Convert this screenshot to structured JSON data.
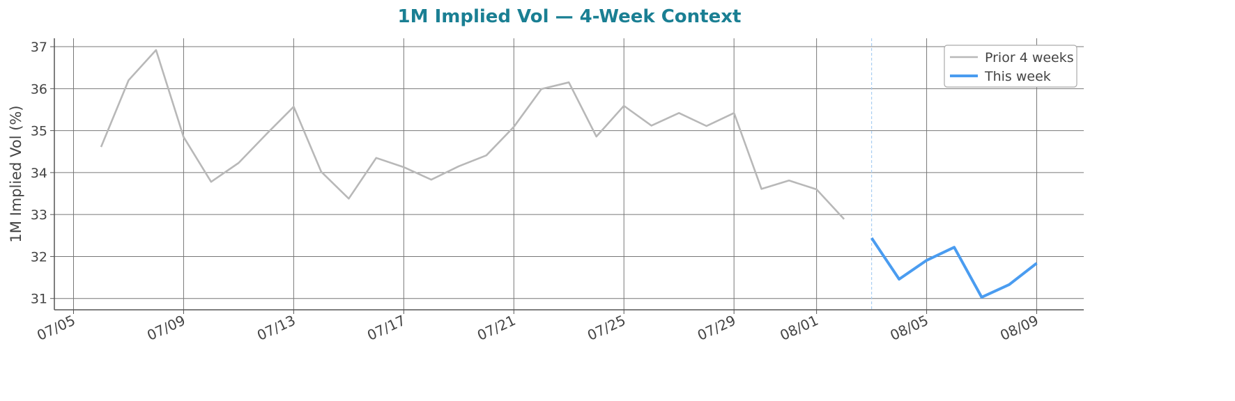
{
  "chart_data": {
    "type": "line",
    "title": "1M Implied Vol — 4-Week Context",
    "y_label": "1M Implied Vol (%)",
    "series": [
      {
        "name": "Prior 4 weeks",
        "color": "#b8b8b8",
        "x": [
          "07/06",
          "07/07",
          "07/08",
          "07/09",
          "07/10",
          "07/11",
          "07/12",
          "07/13",
          "07/14",
          "07/15",
          "07/16",
          "07/17",
          "07/18",
          "07/19",
          "07/20",
          "07/21",
          "07/22",
          "07/23",
          "07/24",
          "07/25",
          "07/26",
          "07/27",
          "07/28",
          "07/29",
          "07/30",
          "07/31",
          "08/01",
          "08/02"
        ],
        "values": [
          34.61,
          36.2,
          36.92,
          34.85,
          33.78,
          34.23,
          34.91,
          35.57,
          34.02,
          33.38,
          34.35,
          34.13,
          33.83,
          34.15,
          34.41,
          35.09,
          35.99,
          36.15,
          34.86,
          35.59,
          35.12,
          35.42,
          35.11,
          35.42,
          33.61,
          33.81,
          33.6,
          32.89
        ]
      },
      {
        "name": "This week",
        "color": "#4a9cf0",
        "x": [
          "08/03",
          "08/04",
          "08/05",
          "08/06",
          "08/07",
          "08/08",
          "08/09"
        ],
        "values": [
          32.44,
          31.46,
          31.91,
          32.22,
          31.03,
          31.33,
          31.84
        ]
      }
    ],
    "xlim": [
      "07/04",
      "08/10"
    ],
    "xticks": [
      "07/05",
      "07/09",
      "07/13",
      "07/17",
      "07/21",
      "07/25",
      "07/29",
      "08/01",
      "08/05",
      "08/09"
    ],
    "ylim": [
      30.73,
      37.2
    ],
    "yticks": [
      31,
      32,
      33,
      34,
      35,
      36,
      37
    ],
    "grid": true,
    "legend": "upper right"
  }
}
